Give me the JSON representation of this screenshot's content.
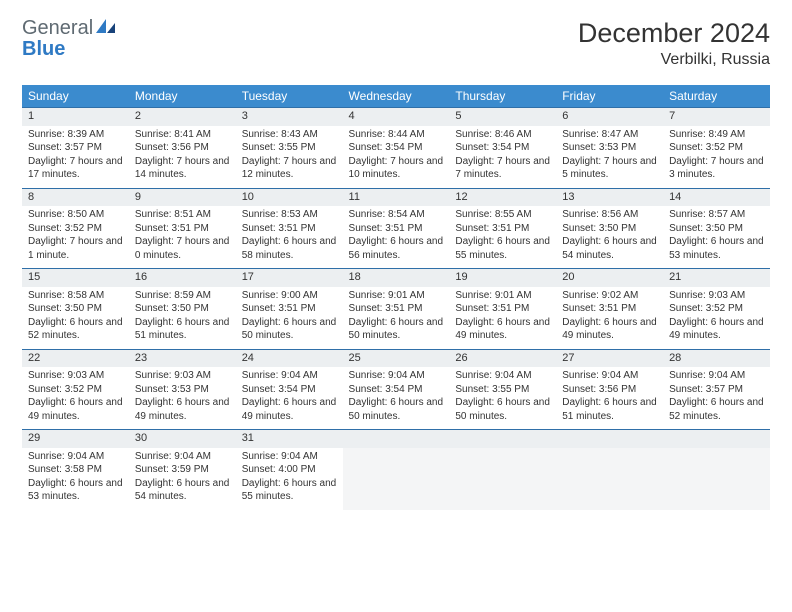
{
  "logo": {
    "line1": "General",
    "line2": "Blue"
  },
  "header": {
    "month_title": "December 2024",
    "location": "Verbilki, Russia"
  },
  "colors": {
    "header_bg": "#3b8bce",
    "header_text": "#ffffff",
    "daynum_bg": "#eceff1",
    "daynum_border": "#2f6fa8",
    "body_text": "#333333",
    "logo_gray": "#5f6a72",
    "logo_blue": "#2f7ac4",
    "empty_bg": "#f4f5f6"
  },
  "typography": {
    "title_fontsize": 27,
    "location_fontsize": 16,
    "dayhdr_fontsize": 12,
    "cell_fontsize": 10
  },
  "day_headers": [
    "Sunday",
    "Monday",
    "Tuesday",
    "Wednesday",
    "Thursday",
    "Friday",
    "Saturday"
  ],
  "weeks": [
    {
      "nums": [
        "1",
        "2",
        "3",
        "4",
        "5",
        "6",
        "7"
      ],
      "cells": [
        {
          "sunrise": "8:39 AM",
          "sunset": "3:57 PM",
          "daylight": "7 hours and 17 minutes."
        },
        {
          "sunrise": "8:41 AM",
          "sunset": "3:56 PM",
          "daylight": "7 hours and 14 minutes."
        },
        {
          "sunrise": "8:43 AM",
          "sunset": "3:55 PM",
          "daylight": "7 hours and 12 minutes."
        },
        {
          "sunrise": "8:44 AM",
          "sunset": "3:54 PM",
          "daylight": "7 hours and 10 minutes."
        },
        {
          "sunrise": "8:46 AM",
          "sunset": "3:54 PM",
          "daylight": "7 hours and 7 minutes."
        },
        {
          "sunrise": "8:47 AM",
          "sunset": "3:53 PM",
          "daylight": "7 hours and 5 minutes."
        },
        {
          "sunrise": "8:49 AM",
          "sunset": "3:52 PM",
          "daylight": "7 hours and 3 minutes."
        }
      ]
    },
    {
      "nums": [
        "8",
        "9",
        "10",
        "11",
        "12",
        "13",
        "14"
      ],
      "cells": [
        {
          "sunrise": "8:50 AM",
          "sunset": "3:52 PM",
          "daylight": "7 hours and 1 minute."
        },
        {
          "sunrise": "8:51 AM",
          "sunset": "3:51 PM",
          "daylight": "7 hours and 0 minutes."
        },
        {
          "sunrise": "8:53 AM",
          "sunset": "3:51 PM",
          "daylight": "6 hours and 58 minutes."
        },
        {
          "sunrise": "8:54 AM",
          "sunset": "3:51 PM",
          "daylight": "6 hours and 56 minutes."
        },
        {
          "sunrise": "8:55 AM",
          "sunset": "3:51 PM",
          "daylight": "6 hours and 55 minutes."
        },
        {
          "sunrise": "8:56 AM",
          "sunset": "3:50 PM",
          "daylight": "6 hours and 54 minutes."
        },
        {
          "sunrise": "8:57 AM",
          "sunset": "3:50 PM",
          "daylight": "6 hours and 53 minutes."
        }
      ]
    },
    {
      "nums": [
        "15",
        "16",
        "17",
        "18",
        "19",
        "20",
        "21"
      ],
      "cells": [
        {
          "sunrise": "8:58 AM",
          "sunset": "3:50 PM",
          "daylight": "6 hours and 52 minutes."
        },
        {
          "sunrise": "8:59 AM",
          "sunset": "3:50 PM",
          "daylight": "6 hours and 51 minutes."
        },
        {
          "sunrise": "9:00 AM",
          "sunset": "3:51 PM",
          "daylight": "6 hours and 50 minutes."
        },
        {
          "sunrise": "9:01 AM",
          "sunset": "3:51 PM",
          "daylight": "6 hours and 50 minutes."
        },
        {
          "sunrise": "9:01 AM",
          "sunset": "3:51 PM",
          "daylight": "6 hours and 49 minutes."
        },
        {
          "sunrise": "9:02 AM",
          "sunset": "3:51 PM",
          "daylight": "6 hours and 49 minutes."
        },
        {
          "sunrise": "9:03 AM",
          "sunset": "3:52 PM",
          "daylight": "6 hours and 49 minutes."
        }
      ]
    },
    {
      "nums": [
        "22",
        "23",
        "24",
        "25",
        "26",
        "27",
        "28"
      ],
      "cells": [
        {
          "sunrise": "9:03 AM",
          "sunset": "3:52 PM",
          "daylight": "6 hours and 49 minutes."
        },
        {
          "sunrise": "9:03 AM",
          "sunset": "3:53 PM",
          "daylight": "6 hours and 49 minutes."
        },
        {
          "sunrise": "9:04 AM",
          "sunset": "3:54 PM",
          "daylight": "6 hours and 49 minutes."
        },
        {
          "sunrise": "9:04 AM",
          "sunset": "3:54 PM",
          "daylight": "6 hours and 50 minutes."
        },
        {
          "sunrise": "9:04 AM",
          "sunset": "3:55 PM",
          "daylight": "6 hours and 50 minutes."
        },
        {
          "sunrise": "9:04 AM",
          "sunset": "3:56 PM",
          "daylight": "6 hours and 51 minutes."
        },
        {
          "sunrise": "9:04 AM",
          "sunset": "3:57 PM",
          "daylight": "6 hours and 52 minutes."
        }
      ]
    },
    {
      "nums": [
        "29",
        "30",
        "31",
        "",
        "",
        "",
        ""
      ],
      "cells": [
        {
          "sunrise": "9:04 AM",
          "sunset": "3:58 PM",
          "daylight": "6 hours and 53 minutes."
        },
        {
          "sunrise": "9:04 AM",
          "sunset": "3:59 PM",
          "daylight": "6 hours and 54 minutes."
        },
        {
          "sunrise": "9:04 AM",
          "sunset": "4:00 PM",
          "daylight": "6 hours and 55 minutes."
        },
        null,
        null,
        null,
        null
      ]
    }
  ],
  "labels": {
    "sunrise": "Sunrise:",
    "sunset": "Sunset:",
    "daylight": "Daylight:"
  }
}
